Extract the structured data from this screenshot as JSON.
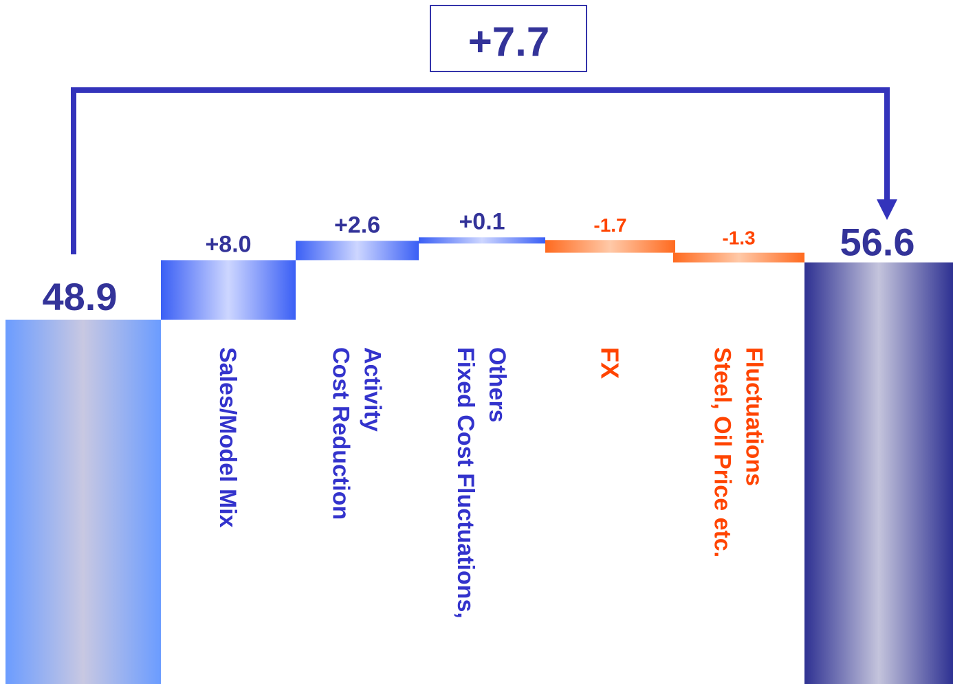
{
  "chart_data": {
    "type": "bar",
    "subtype": "waterfall",
    "start": {
      "value": 48.9,
      "label": "48.9"
    },
    "end": {
      "value": 56.6,
      "label": "56.6"
    },
    "total_change": {
      "value": 7.7,
      "label": "+7.7"
    },
    "steps": [
      {
        "name": "Sales/Model Mix",
        "name_lines": [
          "Sales/Model Mix"
        ],
        "value": 8.0,
        "label": "+8.0",
        "direction": "increase"
      },
      {
        "name": "Cost Reduction Activity",
        "name_lines": [
          "Cost Reduction",
          "Activity"
        ],
        "value": 2.6,
        "label": "+2.6",
        "direction": "increase"
      },
      {
        "name": "Fixed Cost Fluctuations, Others",
        "name_lines": [
          "Fixed Cost Fluctuations,",
          "Others"
        ],
        "value": 0.1,
        "label": "+0.1",
        "direction": "increase"
      },
      {
        "name": "FX",
        "name_lines": [
          "FX"
        ],
        "value": -1.7,
        "label": "-1.7",
        "direction": "decrease"
      },
      {
        "name": "Steel, Oil Price etc. Fluctuations",
        "name_lines": [
          "Steel, Oil Price etc.",
          "Fluctuations"
        ],
        "value": -1.3,
        "label": "-1.3",
        "direction": "decrease"
      }
    ],
    "colors": {
      "increase": "#3355ee",
      "decrease": "#ff5511",
      "start_bar": "#6699ff",
      "end_bar": "#333399",
      "bracket": "#3333bb",
      "label_text": "#333399",
      "increase_text": "#3333cc",
      "decrease_text": "#ff4400"
    },
    "axes_visible": false,
    "grid": false,
    "legend": "none"
  }
}
